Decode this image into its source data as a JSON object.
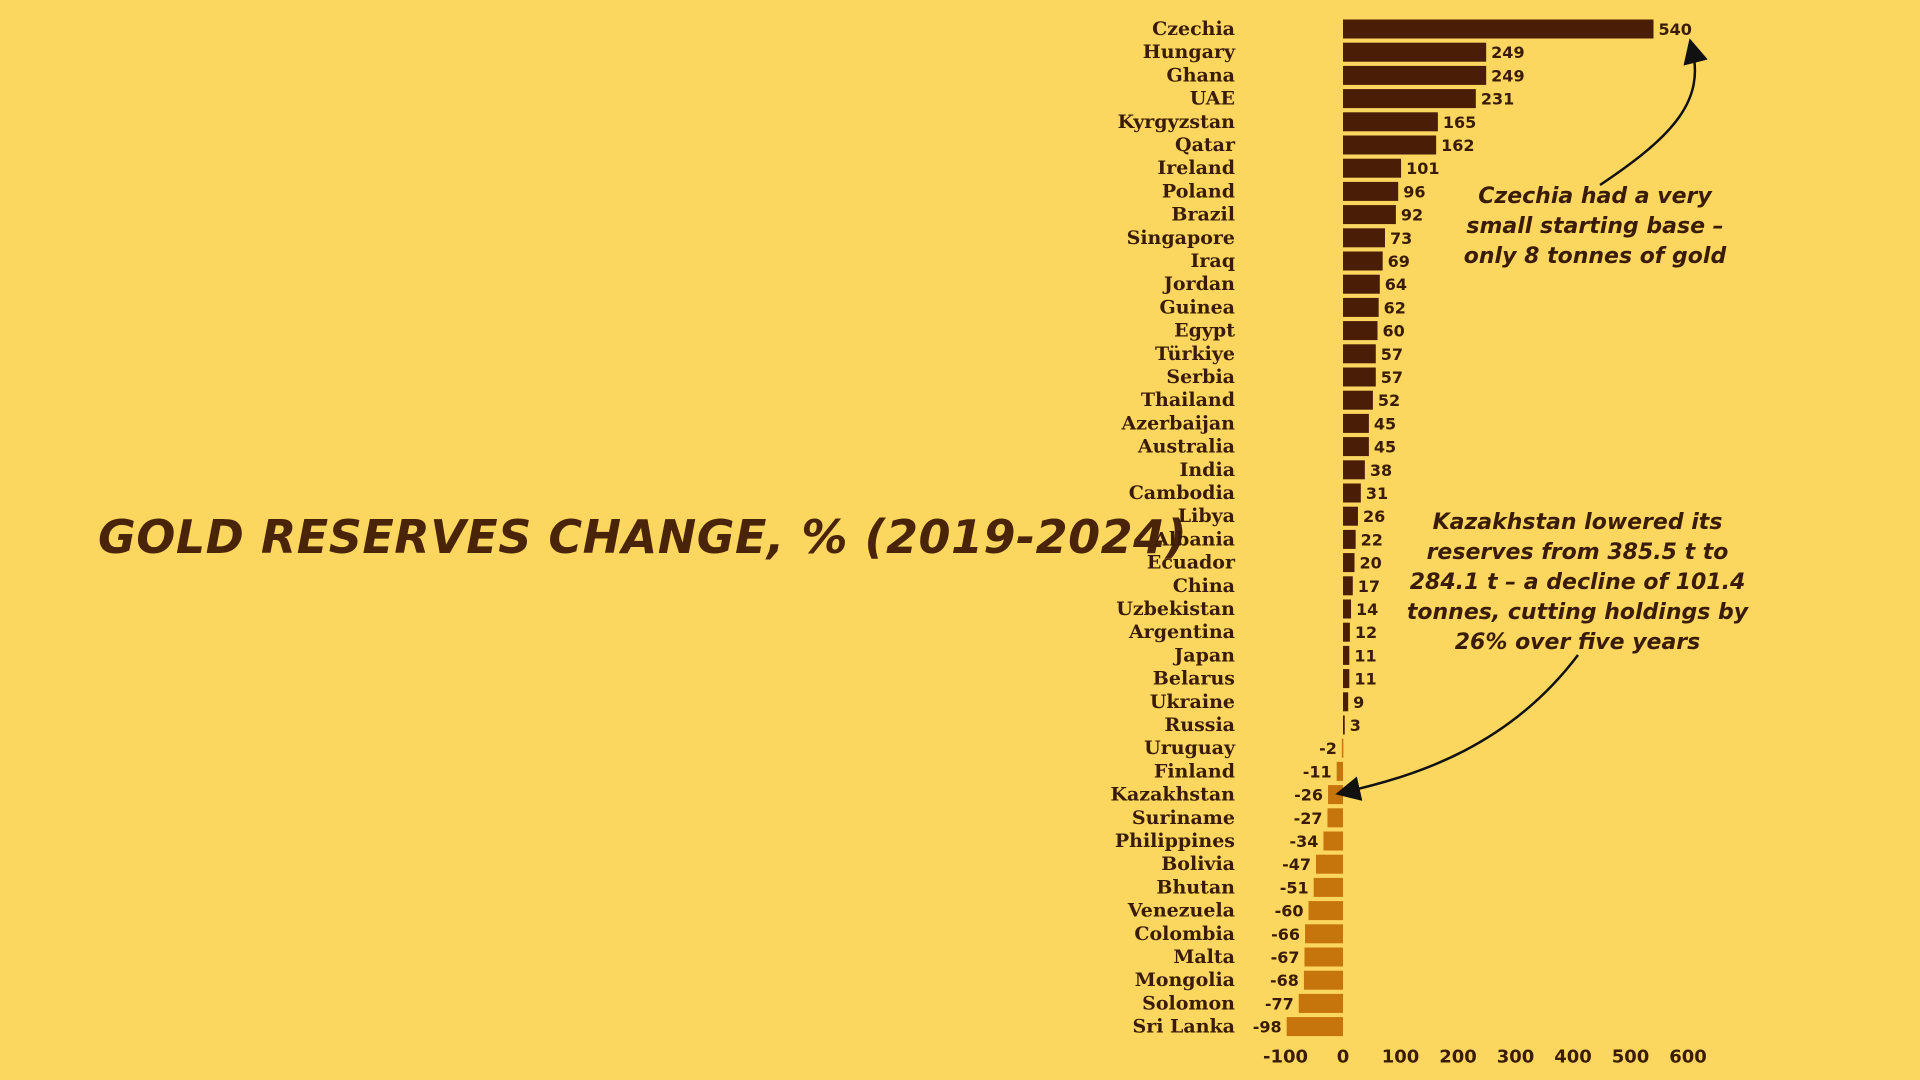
{
  "title": "GOLD RESERVES CHANGE, % (2019-2024)",
  "annotations": {
    "czechia_note": "Czechia had a very small starting base – only 8 tonnes of gold",
    "kazakhstan_note": "Kazakhstan lowered its reserves from 385.5 t to 284.1 t – a decline of 101.4 tonnes, cutting holdings by 26% over five years"
  },
  "colors": {
    "background": "#fcd75f",
    "positive_bar": "#4a1d06",
    "negative_bar": "#c6740c",
    "text": "#3a1c06"
  },
  "chart_data": {
    "type": "bar",
    "orientation": "horizontal",
    "title": "GOLD RESERVES CHANGE, % (2019-2024)",
    "xlabel": "",
    "ylabel": "",
    "xlim": [
      -100,
      600
    ],
    "x_ticks": [
      "-100",
      "0",
      "100",
      "200",
      "300",
      "400",
      "500",
      "600"
    ],
    "grid": false,
    "categories": [
      "Czechia",
      "Hungary",
      "Ghana",
      "UAE",
      "Kyrgyzstan",
      "Qatar",
      "Ireland",
      "Poland",
      "Brazil",
      "Singapore",
      "Iraq",
      "Jordan",
      "Guinea",
      "Egypt",
      "Türkiye",
      "Serbia",
      "Thailand",
      "Azerbaijan",
      "Australia",
      "India",
      "Cambodia",
      "Libya",
      "Albania",
      "Ecuador",
      "China",
      "Uzbekistan",
      "Argentina",
      "Japan",
      "Belarus",
      "Ukraine",
      "Russia",
      "Uruguay",
      "Finland",
      "Kazakhstan",
      "Suriname",
      "Philippines",
      "Bolivia",
      "Bhutan",
      "Venezuela",
      "Colombia",
      "Malta",
      "Mongolia",
      "Solomon",
      "Sri Lanka"
    ],
    "values": [
      540,
      249,
      249,
      231,
      165,
      162,
      101,
      96,
      92,
      73,
      69,
      64,
      62,
      60,
      57,
      57,
      52,
      45,
      45,
      38,
      31,
      26,
      22,
      20,
      17,
      14,
      12,
      11,
      11,
      9,
      3,
      -2,
      -11,
      -26,
      -27,
      -34,
      -47,
      -51,
      -60,
      -66,
      -67,
      -68,
      -77,
      -98
    ]
  }
}
